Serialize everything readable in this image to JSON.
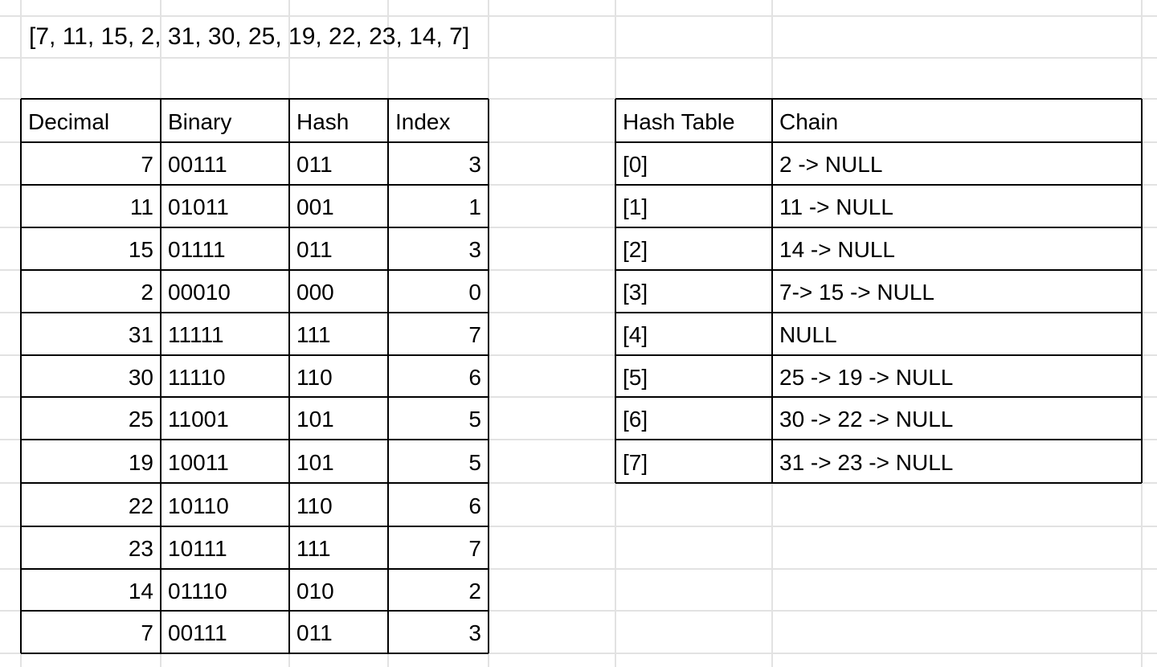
{
  "array_text": "[7, 11, 15, 2, 31, 30, 25, 19, 22, 23, 14, 7]",
  "left_table": {
    "headers": [
      "Decimal",
      "Binary",
      "Hash",
      "Index"
    ],
    "rows": [
      [
        "7",
        "00111",
        "011",
        "3"
      ],
      [
        "11",
        "01011",
        "001",
        "1"
      ],
      [
        "15",
        "01111",
        "011",
        "3"
      ],
      [
        "2",
        "00010",
        "000",
        "0"
      ],
      [
        "31",
        "11111",
        "111",
        "7"
      ],
      [
        "30",
        "11110",
        "110",
        "6"
      ],
      [
        "25",
        "11001",
        "101",
        "5"
      ],
      [
        "19",
        "10011",
        "101",
        "5"
      ],
      [
        "22",
        "10110",
        "110",
        "6"
      ],
      [
        "23",
        "10111",
        "111",
        "7"
      ],
      [
        "14",
        "01110",
        "010",
        "2"
      ],
      [
        "7",
        "00111",
        "011",
        "3"
      ]
    ]
  },
  "right_table": {
    "headers": [
      "Hash Table",
      "Chain"
    ],
    "rows": [
      [
        "[0]",
        "2 -> NULL"
      ],
      [
        "[1]",
        "11 -> NULL"
      ],
      [
        "[2]",
        "14 -> NULL"
      ],
      [
        "[3]",
        "7-> 15 -> NULL"
      ],
      [
        "[4]",
        "NULL"
      ],
      [
        "[5]",
        "25 -> 19 -> NULL"
      ],
      [
        "[6]",
        "30 -> 22 -> NULL"
      ],
      [
        "[7]",
        "31 -> 23 -> NULL"
      ]
    ]
  },
  "colors": {
    "gridline": "#e2e2e2",
    "border": "#000000",
    "text": "#000000",
    "background": "#ffffff"
  }
}
